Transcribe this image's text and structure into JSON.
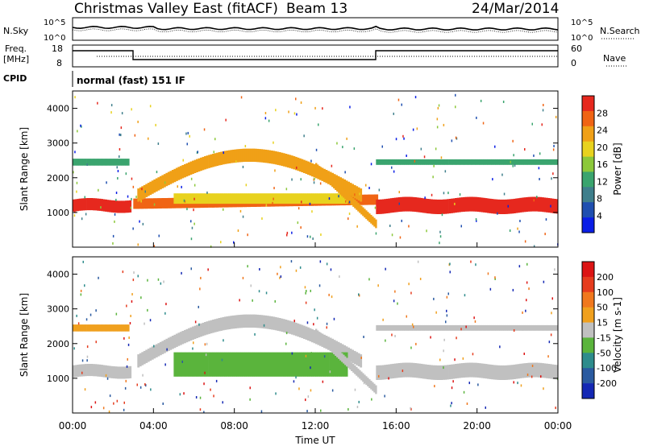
{
  "header": {
    "station": "Christmas Valley East (fitACF)",
    "beam": "Beam 13",
    "date": "24/Mar/2014"
  },
  "panels": {
    "nsky_label": "N.Sky",
    "nsearch_label": "N.Search",
    "freq_label": "Freq.",
    "freq_unit": "[MHz]",
    "nave_label": "Nave",
    "cpid_label": "CPID",
    "cpid_text": "normal (fast) 151 IF",
    "noise_ticks": [
      "10^5",
      "10^0"
    ],
    "freq_ticks": [
      "18",
      "8"
    ],
    "nave_ticks": [
      "60",
      "0"
    ]
  },
  "chart_data": [
    {
      "type": "heatmap",
      "panel": "power",
      "xlabel": "Time UT",
      "ylabel": "Slant Range [km]",
      "x_ticks": [
        "00:00",
        "04:00",
        "08:00",
        "12:00",
        "16:00",
        "20:00",
        "00:00"
      ],
      "y_ticks": [
        1000,
        2000,
        3000,
        4000
      ],
      "xlim_hours": [
        0,
        24
      ],
      "ylim_km": [
        0,
        4500
      ],
      "colorbar_label": "Power [dB]",
      "colorbar_ticks": [
        28,
        24,
        20,
        16,
        12,
        8,
        4
      ],
      "colors": [
        "#0a1ee6",
        "#1f4fb0",
        "#3f7f8c",
        "#3aa46e",
        "#8cc83a",
        "#e8d21e",
        "#f0a017",
        "#f06414",
        "#e6281e"
      ]
    },
    {
      "type": "heatmap",
      "panel": "velocity",
      "xlabel": "Time UT",
      "ylabel": "Slant Range [km]",
      "x_ticks": [
        "00:00",
        "04:00",
        "08:00",
        "12:00",
        "16:00",
        "20:00",
        "00:00"
      ],
      "y_ticks": [
        1000,
        2000,
        3000,
        4000
      ],
      "xlim_hours": [
        0,
        24
      ],
      "ylim_km": [
        0,
        4500
      ],
      "colorbar_label": "Velocity [m s-1]",
      "colorbar_ticks": [
        200,
        100,
        50,
        15,
        -15,
        -50,
        -100,
        -200
      ],
      "colors": [
        "#1428b4",
        "#2a5aa0",
        "#2e8c8c",
        "#5ab43c",
        "#c0c0c0",
        "#f0a01e",
        "#f0781e",
        "#e63c1e",
        "#dc1414"
      ]
    }
  ]
}
